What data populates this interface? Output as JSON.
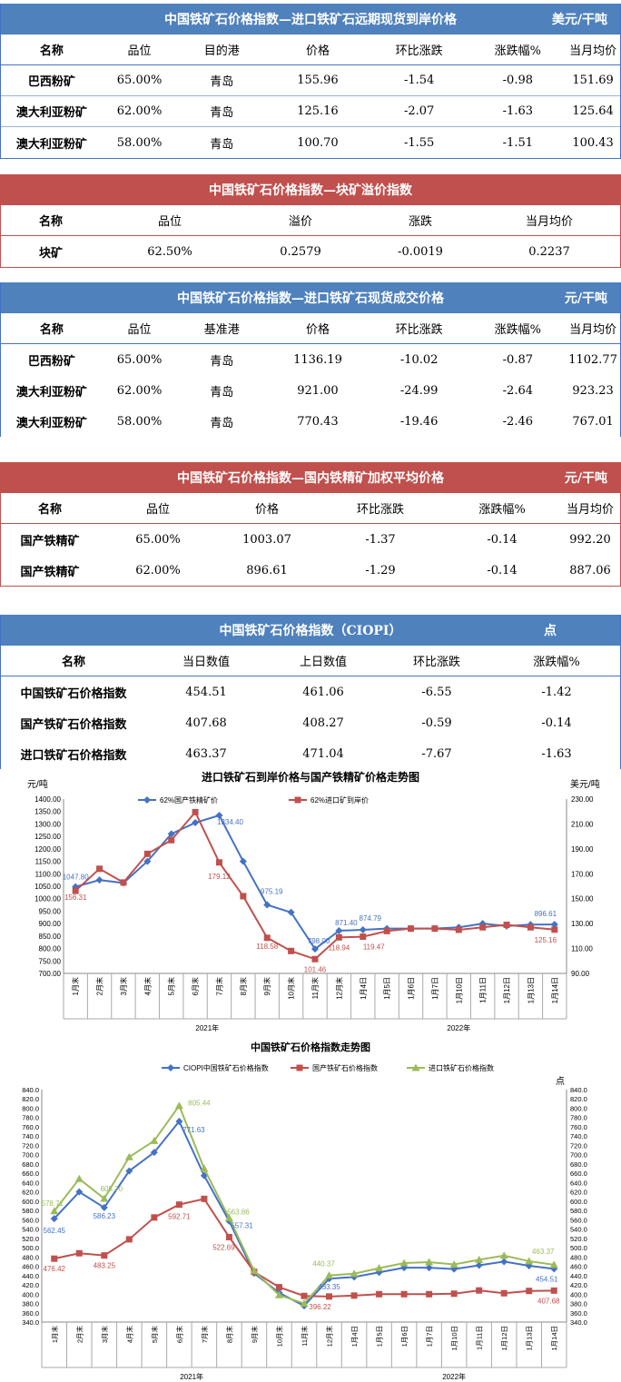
{
  "t1": {
    "title": "中国铁矿石价格指数—进口铁矿石远期现货到岸价格",
    "unit": "美元/干吨",
    "cols": [
      "名称",
      "品位",
      "目的港",
      "价格",
      "环比涨跌",
      "涨跌幅%",
      "当月均价"
    ],
    "rows": [
      [
        "巴西粉矿",
        "65.00%",
        "青岛",
        "155.96",
        "-1.54",
        "-0.98",
        "151.69"
      ],
      [
        "澳大利亚粉矿",
        "62.00%",
        "青岛",
        "125.16",
        "-2.07",
        "-1.63",
        "125.64"
      ],
      [
        "澳大利亚粉矿",
        "58.00%",
        "青岛",
        "100.70",
        "-1.55",
        "-1.51",
        "100.43"
      ]
    ]
  },
  "t2": {
    "title": "中国铁矿石价格指数—块矿溢价指数",
    "cols": [
      "名称",
      "品位",
      "溢价",
      "涨跌",
      "当月均价"
    ],
    "rows": [
      [
        "块矿",
        "62.50%",
        "0.2579",
        "-0.0019",
        "0.2237"
      ]
    ]
  },
  "t3": {
    "title": "中国铁矿石价格指数—进口铁矿石现货成交价格",
    "unit": "元/干吨",
    "cols": [
      "名称",
      "品位",
      "基准港",
      "价格",
      "环比涨跌",
      "涨跌幅%",
      "当月均价"
    ],
    "rows": [
      [
        "巴西粉矿",
        "65.00%",
        "青岛",
        "1136.19",
        "-10.02",
        "-0.87",
        "1102.77"
      ],
      [
        "澳大利亚粉矿",
        "62.00%",
        "青岛",
        "921.00",
        "-24.99",
        "-2.64",
        "923.23"
      ],
      [
        "澳大利亚粉矿",
        "58.00%",
        "青岛",
        "770.43",
        "-19.46",
        "-2.46",
        "767.01"
      ]
    ]
  },
  "t4": {
    "title": "中国铁矿石价格指数—国内铁精矿加权平均价格",
    "unit": "元/干吨",
    "cols": [
      "名称",
      "品位",
      "价格",
      "环比涨跌",
      "涨跌幅%",
      "当月均价"
    ],
    "rows": [
      [
        "国产铁精矿",
        "65.00%",
        "1003.07",
        "-1.37",
        "-0.14",
        "992.20"
      ],
      [
        "国产铁精矿",
        "62.00%",
        "896.61",
        "-1.29",
        "-0.14",
        "887.06"
      ]
    ]
  },
  "t5": {
    "title": "中国铁矿石价格指数（CIOPI）",
    "unit": "点",
    "cols": [
      "名称",
      "当日数值",
      "上日数值",
      "环比涨跌",
      "涨跌幅%"
    ],
    "rows": [
      [
        "中国铁矿石价格指数",
        "454.51",
        "461.06",
        "-6.55",
        "-1.42"
      ],
      [
        "国产铁矿石价格指数",
        "407.68",
        "408.27",
        "-0.59",
        "-0.14"
      ],
      [
        "进口铁矿石价格指数",
        "463.37",
        "471.04",
        "-7.67",
        "-1.63"
      ]
    ]
  },
  "chart_data": [
    {
      "type": "line",
      "title": "进口铁矿石到岸价格与国产铁精矿价格走势图",
      "ylabel_left": "元/吨",
      "ylabel_right": "美元/吨",
      "categories": [
        "1月末",
        "2月末",
        "3月末",
        "4月末",
        "5月末",
        "6月末",
        "7月末",
        "8月末",
        "9月末",
        "10月末",
        "11月末",
        "12月末",
        "1月4日",
        "1月5日",
        "1月6日",
        "1月7日",
        "1月10日",
        "1月11日",
        "1月12日",
        "1月13日",
        "1月14日"
      ],
      "year_labels": [
        "2021年",
        "2022年"
      ],
      "ylim_left": [
        700,
        1400
      ],
      "ylim_right": [
        90,
        230
      ],
      "series": [
        {
          "name": "62%国产铁精矿价",
          "axis": "left",
          "color": "#4472c4",
          "values": [
            1047.8,
            1075,
            1063,
            1150,
            1260,
            1305,
            1334.4,
            1150,
            975.19,
            945,
            798,
            871.4,
            874.79,
            880,
            880,
            880,
            885,
            900,
            890,
            896,
            896.61
          ]
        },
        {
          "name": "62%进口矿到岸价",
          "axis": "right",
          "color": "#c0504d",
          "values": [
            156.31,
            174,
            163,
            186,
            197,
            219.5,
            179.12,
            152,
            118.58,
            108,
            101.46,
            118.94,
            119.47,
            124,
            126,
            126,
            125,
            127,
            129,
            127,
            125.16
          ]
        }
      ],
      "labels": [
        "1047.80",
        "156.31",
        "179.12",
        "1334.40",
        "975.19",
        "118.58",
        "798.00",
        "101.46",
        "871.40",
        "118.94",
        "874.79",
        "119.47",
        "896.61",
        "125.16"
      ],
      "ticks_left": [
        "1400.00",
        "1350.00",
        "1300.00",
        "1250.00",
        "1200.00",
        "1150.00",
        "1100.00",
        "1050.00",
        "1000.00",
        "950.00",
        "900.00",
        "850.00",
        "800.00",
        "750.00",
        "700.00"
      ],
      "ticks_right": [
        "230.00",
        "210.00",
        "190.00",
        "170.00",
        "150.00",
        "130.00",
        "110.00",
        "90.00"
      ]
    },
    {
      "type": "line",
      "title": "中国铁矿石价格指数走势图",
      "ylabel_right": "点",
      "categories": [
        "1月末",
        "2月末",
        "3月末",
        "4月末",
        "5月末",
        "6月末",
        "7月末",
        "8月末",
        "9月末",
        "10月末",
        "11月末",
        "12月末",
        "1月4日",
        "1月5日",
        "1月6日",
        "1月7日",
        "1月10日",
        "1月11日",
        "1月12日",
        "1月13日",
        "1月14日"
      ],
      "year_labels": [
        "2021年",
        "2022年"
      ],
      "ylim": [
        340,
        840
      ],
      "series": [
        {
          "name": "CIOPI中国铁矿石价格指数",
          "color": "#4472c4",
          "values": [
            562.45,
            620,
            586.23,
            665,
            705,
            771.63,
            655,
            557.31,
            445,
            403,
            375,
            433.35,
            437,
            447,
            457,
            457,
            454,
            462,
            470,
            461,
            454.51
          ]
        },
        {
          "name": "国产铁矿石价格指数",
          "color": "#c0504d",
          "values": [
            476.42,
            488,
            483.25,
            518,
            565,
            592.71,
            605,
            522.69,
            448,
            415,
            396.22,
            395,
            397,
            400,
            400,
            400,
            401,
            408,
            402,
            407,
            407.68
          ]
        },
        {
          "name": "进口铁矿石价格指数",
          "color": "#9bbb59",
          "values": [
            578.71,
            648,
            605.7,
            695,
            730,
            805.44,
            670,
            563.86,
            450,
            398,
            380,
            440.37,
            444,
            456,
            467,
            469,
            464,
            474,
            483,
            471,
            463.37
          ]
        }
      ],
      "labels": [
        "578.71",
        "562.45",
        "476.42",
        "605.70",
        "586.23",
        "483.25",
        "805.44",
        "771.63",
        "592.71",
        "563.86",
        "557.31",
        "522.69",
        "440.37",
        "433.35",
        "396.22",
        "463.37",
        "454.51",
        "407.68"
      ],
      "ticks": [
        "840.0",
        "820.0",
        "800.0",
        "780.0",
        "760.0",
        "740.0",
        "720.0",
        "700.0",
        "680.0",
        "660.0",
        "640.0",
        "620.0",
        "600.0",
        "580.0",
        "560.0",
        "540.0",
        "520.0",
        "500.0",
        "480.0",
        "460.0",
        "440.0",
        "420.0",
        "400.0",
        "380.0",
        "360.0",
        "340.0"
      ]
    }
  ]
}
